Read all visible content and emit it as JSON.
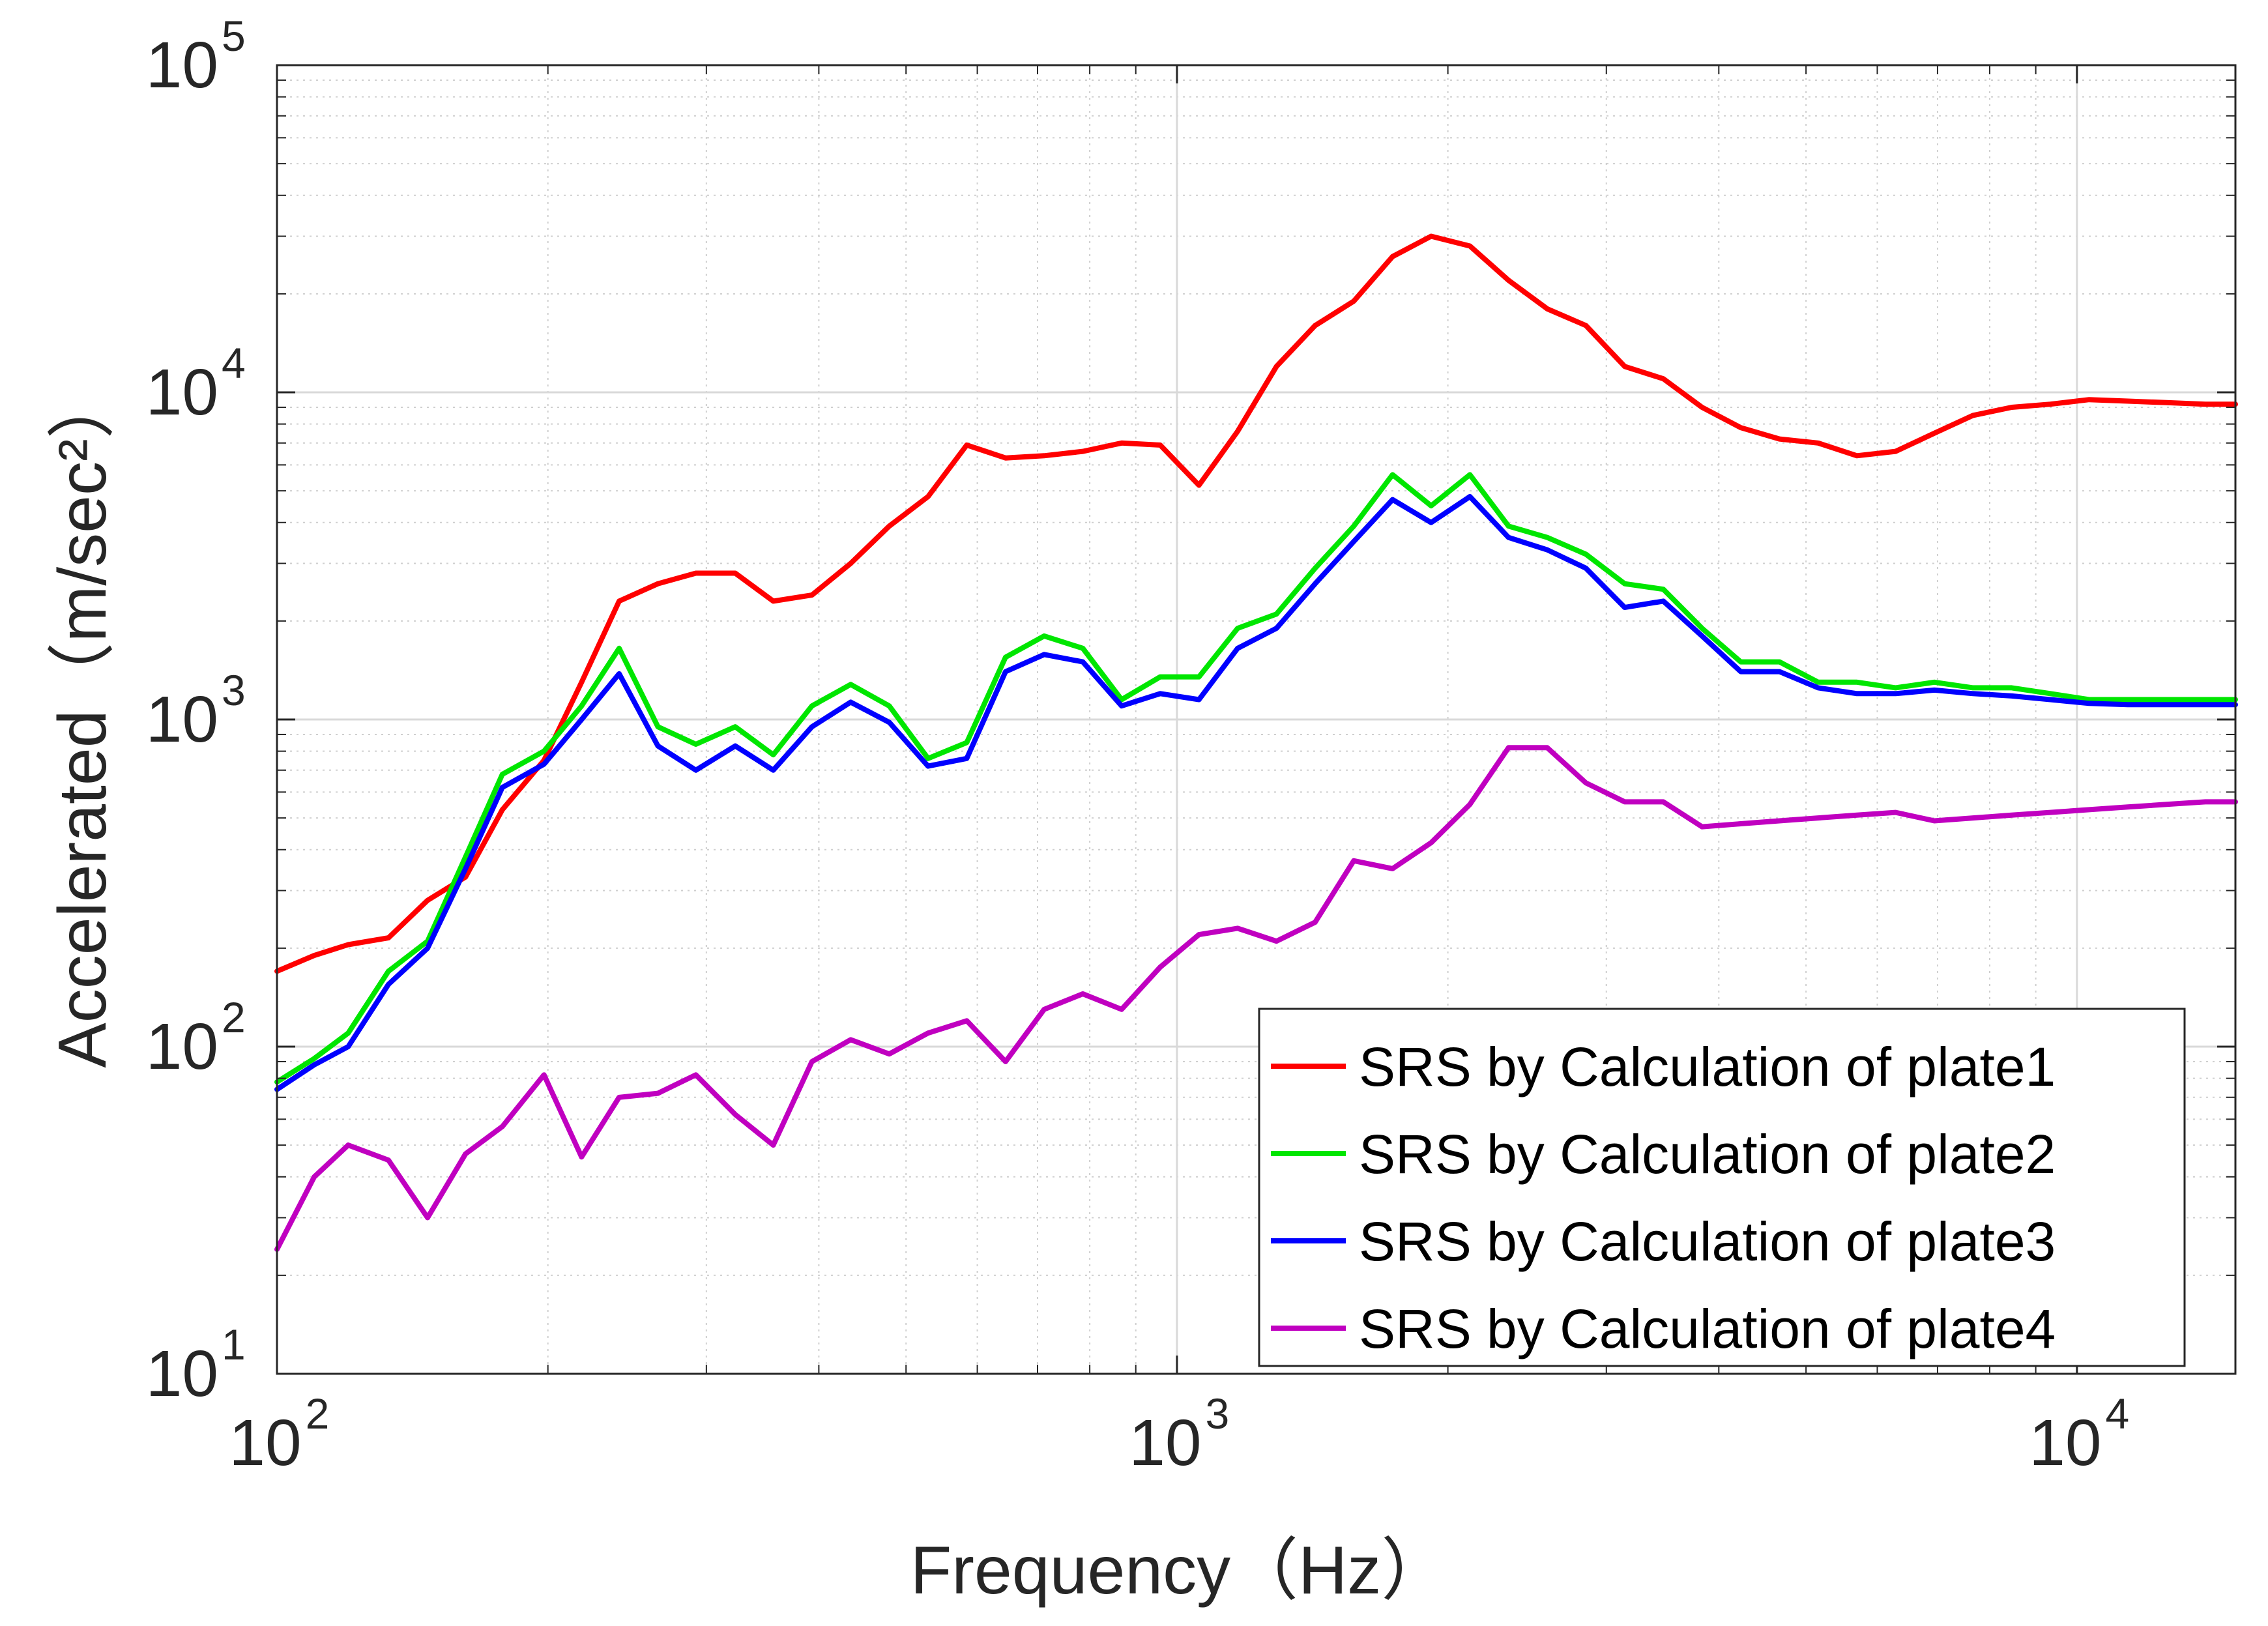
{
  "chart_data": {
    "type": "line",
    "title": "",
    "xlabel": "Frequency（Hz）",
    "ylabel": "Accelerated（m/sec²）",
    "xscale": "log",
    "yscale": "log",
    "xlim": [
      100,
      15000
    ],
    "ylim": [
      10,
      100000
    ],
    "grid": "on (major + minor)",
    "legend_position": "bottom-right",
    "x_ticks": [
      {
        "value": 100,
        "base": "10",
        "exp": "2"
      },
      {
        "value": 1000,
        "base": "10",
        "exp": "3"
      },
      {
        "value": 10000,
        "base": "10",
        "exp": "4"
      }
    ],
    "y_ticks": [
      {
        "value": 10,
        "base": "10",
        "exp": "1"
      },
      {
        "value": 100,
        "base": "10",
        "exp": "2"
      },
      {
        "value": 1000,
        "base": "10",
        "exp": "3"
      },
      {
        "value": 10000,
        "base": "10",
        "exp": "4"
      },
      {
        "value": 100000,
        "base": "10",
        "exp": "5"
      }
    ],
    "x": [
      100,
      110,
      120,
      133,
      147,
      162,
      178,
      198,
      218,
      240,
      265,
      292,
      323,
      356,
      393,
      434,
      479,
      529,
      584,
      645,
      712,
      786,
      868,
      958,
      1058,
      1168,
      1290,
      1424,
      1572,
      1736,
      1916,
      2116,
      2336,
      2579,
      2847,
      3144,
      3471,
      3832,
      4231,
      4672,
      5158,
      5695,
      6288,
      6943,
      7666,
      8463,
      9344,
      10317,
      11391,
      12577,
      13886,
      15000
    ],
    "series": [
      {
        "name": "SRS by Calculation of plate1",
        "color": "#ff0000",
        "values": [
          170,
          190,
          205,
          215,
          280,
          330,
          530,
          750,
          1300,
          2300,
          2600,
          2800,
          2800,
          2300,
          2400,
          3000,
          3900,
          4800,
          6900,
          6300,
          6400,
          6600,
          7000,
          6900,
          5200,
          7600,
          12000,
          16000,
          19000,
          26000,
          30000,
          28000,
          22000,
          18000,
          16000,
          12000,
          11000,
          9000,
          7800,
          7200,
          7000,
          6400,
          6600,
          7500,
          8500,
          9000,
          9200,
          9500,
          9400,
          9300,
          9200,
          9200
        ]
      },
      {
        "name": "SRS by Calculation of plate2",
        "color": "#00e600",
        "values": [
          78,
          92,
          110,
          170,
          210,
          380,
          680,
          800,
          1100,
          1650,
          950,
          840,
          950,
          780,
          1100,
          1280,
          1100,
          760,
          850,
          1550,
          1800,
          1650,
          1150,
          1350,
          1350,
          1900,
          2100,
          2900,
          3900,
          5600,
          4500,
          5600,
          3900,
          3600,
          3200,
          2600,
          2500,
          1900,
          1500,
          1500,
          1300,
          1300,
          1250,
          1300,
          1250,
          1250,
          1200,
          1150,
          1150,
          1150,
          1150,
          1150
        ]
      },
      {
        "name": "SRS by Calculation of plate3",
        "color": "#0000ff",
        "values": [
          74,
          88,
          100,
          155,
          200,
          350,
          620,
          730,
          1000,
          1380,
          830,
          700,
          830,
          700,
          950,
          1130,
          980,
          720,
          760,
          1400,
          1580,
          1500,
          1100,
          1200,
          1150,
          1650,
          1900,
          2600,
          3500,
          4700,
          4000,
          4800,
          3600,
          3300,
          2900,
          2200,
          2300,
          1800,
          1400,
          1400,
          1250,
          1200,
          1200,
          1230,
          1200,
          1180,
          1150,
          1120,
          1110,
          1110,
          1110,
          1110
        ]
      },
      {
        "name": "SRS by Calculation of plate4",
        "color": "#c000c0",
        "values": [
          24,
          40,
          50,
          45,
          30,
          47,
          57,
          82,
          46,
          70,
          72,
          82,
          62,
          50,
          90,
          105,
          95,
          110,
          120,
          90,
          130,
          145,
          130,
          175,
          220,
          230,
          210,
          240,
          370,
          350,
          420,
          550,
          820,
          820,
          640,
          560,
          560,
          470,
          480,
          490,
          500,
          510,
          520,
          490,
          500,
          510,
          520,
          530,
          540,
          550,
          560,
          560
        ]
      }
    ]
  }
}
